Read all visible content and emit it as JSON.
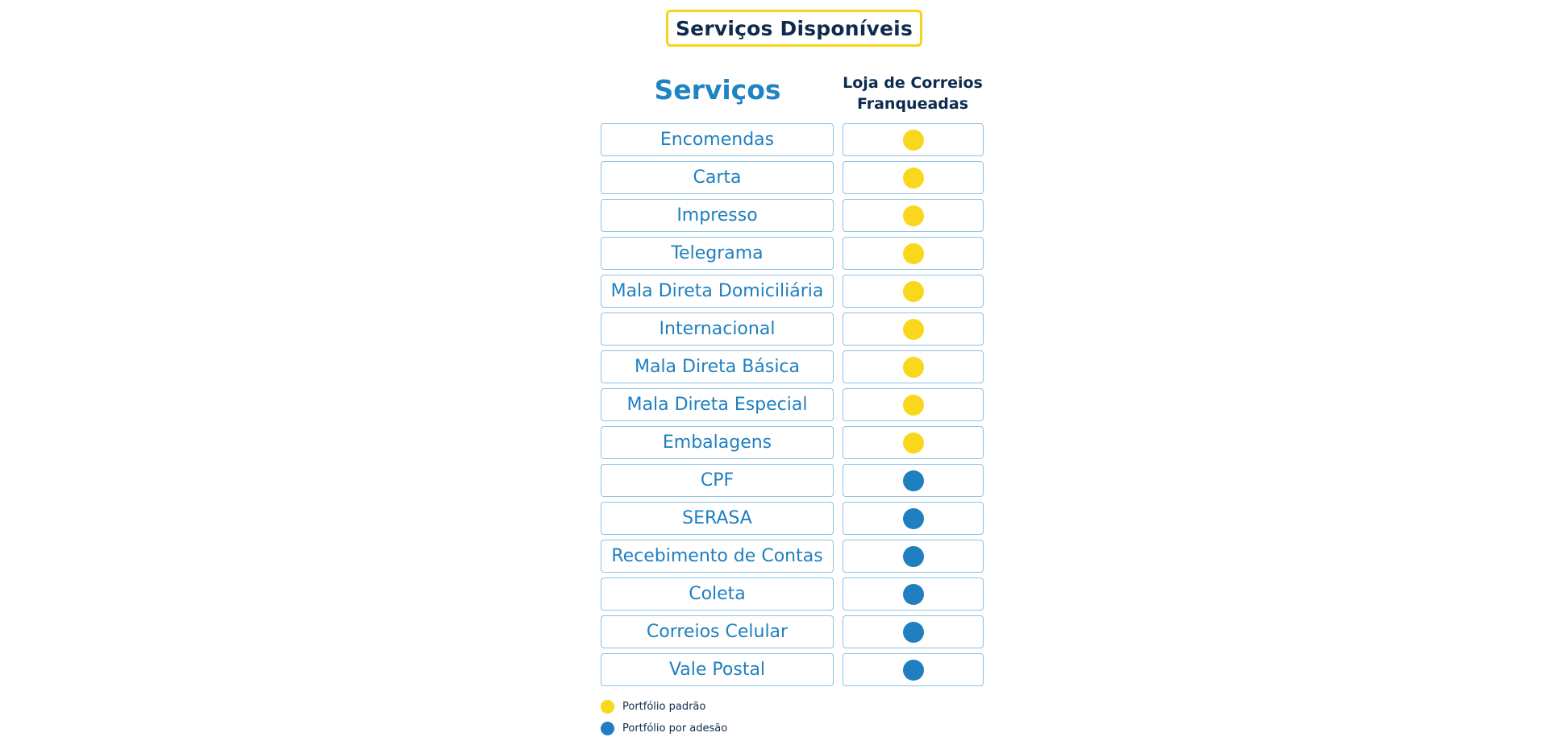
{
  "title": "Serviços Disponíveis",
  "headers": {
    "services": "Serviços",
    "franchise_line1": "Loja de Correios",
    "franchise_line2": "Franqueadas"
  },
  "colors": {
    "standard": "#f9d71c",
    "adhesion": "#1f7fc0"
  },
  "rows": [
    {
      "service": "Encomendas",
      "portfolio": "standard"
    },
    {
      "service": "Carta",
      "portfolio": "standard"
    },
    {
      "service": "Impresso",
      "portfolio": "standard"
    },
    {
      "service": "Telegrama",
      "portfolio": "standard"
    },
    {
      "service": "Mala Direta Domiciliária",
      "portfolio": "standard"
    },
    {
      "service": "Internacional",
      "portfolio": "standard"
    },
    {
      "service": "Mala Direta Básica",
      "portfolio": "standard"
    },
    {
      "service": "Mala Direta Especial",
      "portfolio": "standard"
    },
    {
      "service": "Embalagens",
      "portfolio": "standard"
    },
    {
      "service": "CPF",
      "portfolio": "adhesion"
    },
    {
      "service": "SERASA",
      "portfolio": "adhesion"
    },
    {
      "service": "Recebimento de Contas",
      "portfolio": "adhesion"
    },
    {
      "service": "Coleta",
      "portfolio": "adhesion"
    },
    {
      "service": "Correios Celular",
      "portfolio": "adhesion"
    },
    {
      "service": "Vale Postal",
      "portfolio": "adhesion"
    }
  ],
  "legend": [
    {
      "key": "standard",
      "label": "Portfólio padrão"
    },
    {
      "key": "adhesion",
      "label": "Portfólio por adesão"
    }
  ]
}
